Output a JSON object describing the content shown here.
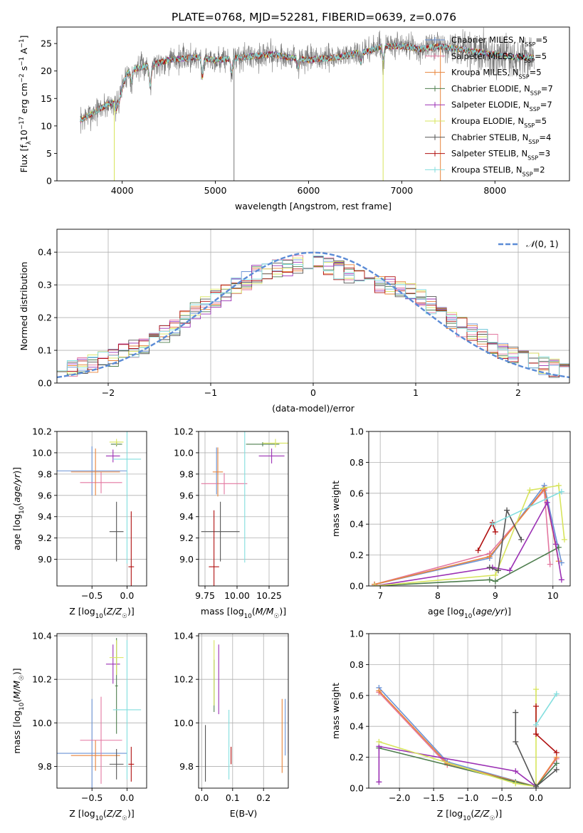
{
  "figure_title": "PLATE=0768, MJD=52281, FIBERID=0639, z=0.076",
  "series_colors": [
    "#6b93d6",
    "#e377a0",
    "#e8843b",
    "#4e7e4e",
    "#9b30b4",
    "#d7e45c",
    "#555555",
    "#b01010",
    "#82dede"
  ],
  "legend_labels": [
    [
      "Chabrier MILES, N",
      "SSP",
      "=5"
    ],
    [
      "Salpeter MILES, N",
      "SSP",
      "=5"
    ],
    [
      "Kroupa MILES, N",
      "SSP",
      "=5"
    ],
    [
      "Chabrier ELODIE, N",
      "SSP",
      "=7"
    ],
    [
      "Salpeter ELODIE, N",
      "SSP",
      "=7"
    ],
    [
      "Kroupa ELODIE, N",
      "SSP",
      "=5"
    ],
    [
      "Chabrier STELIB, N",
      "SSP",
      "=4"
    ],
    [
      "Salpeter STELIB, N",
      "SSP",
      "=3"
    ],
    [
      "Kroupa STELIB, N",
      "SSP",
      "=2"
    ]
  ],
  "chart_data": [
    {
      "id": "spectrum",
      "type": "line",
      "xlabel": "wavelength [Angstrom, rest frame]",
      "ylabel": "Flux [f_λ 10^-17 erg cm^-2 s^-1 A^-1]",
      "xlim": [
        3300,
        8800
      ],
      "ylim": [
        0,
        28
      ],
      "xticks": [
        4000,
        5000,
        6000,
        7000,
        8000
      ],
      "yticks": [
        0,
        5,
        10,
        15,
        20,
        25
      ],
      "grid": false,
      "legend": "top-right",
      "continuum": {
        "x": [
          3550,
          3700,
          3850,
          3950,
          4050,
          4150,
          4300,
          4500,
          4800,
          5000,
          5300,
          5600,
          6000,
          6300,
          6600,
          6800,
          7000,
          7200,
          7400,
          7600,
          7800,
          8000,
          8200,
          8400
        ],
        "y": [
          11,
          12.5,
          14,
          14.5,
          19.5,
          20.5,
          21,
          22,
          22.5,
          22,
          22.5,
          23,
          22,
          22.5,
          23.5,
          24.5,
          24.5,
          24,
          24.5,
          24,
          23.5,
          23,
          22.5,
          22.5
        ]
      },
      "absorption_dips": [
        {
          "x": 3933,
          "y": 13
        },
        {
          "x": 3969,
          "y": 14.5
        },
        {
          "x": 4102,
          "y": 18
        },
        {
          "x": 4300,
          "y": 17.5
        },
        {
          "x": 4861,
          "y": 19
        },
        {
          "x": 5175,
          "y": 19.5
        },
        {
          "x": 5890,
          "y": 20.5
        },
        {
          "x": 6563,
          "y": 21.5
        },
        {
          "x": 6800,
          "y": 22
        }
      ]
    },
    {
      "id": "residuals",
      "type": "line",
      "xlabel": "(data-model)/error",
      "ylabel": "Normed distribution",
      "xlim": [
        -2.5,
        2.5
      ],
      "ylim": [
        0,
        0.47
      ],
      "xticks": [
        -2,
        -1,
        0,
        1,
        2
      ],
      "yticks": [
        0.0,
        0.1,
        0.2,
        0.3,
        0.4
      ],
      "grid": true,
      "legend": "top-right",
      "gaussian_label": "N(0,1)",
      "bin_width": 0.1,
      "hist_base": {
        "x": [
          -2.5,
          -2.0,
          -1.5,
          -1.0,
          -0.5,
          0.0,
          0.5,
          1.0,
          1.5,
          2.0,
          2.5
        ],
        "y": [
          0.04,
          0.07,
          0.14,
          0.25,
          0.34,
          0.37,
          0.32,
          0.27,
          0.16,
          0.08,
          0.03
        ]
      }
    },
    {
      "id": "age-vs-Z",
      "type": "scatter",
      "xlabel": "Z [log10(Z/Z☉)]",
      "ylabel": "age [log10(age/yr)]",
      "xlim": [
        -1.0,
        0.28
      ],
      "ylim": [
        8.75,
        10.2
      ],
      "xticks": [
        -0.5,
        0.0
      ],
      "yticks": [
        9.0,
        9.2,
        9.4,
        9.6,
        9.8,
        10.0,
        10.2
      ],
      "grid": true,
      "points": [
        {
          "x": -0.5,
          "y": 9.83,
          "xerr": 0.5,
          "yerr": 0.23
        },
        {
          "x": -0.37,
          "y": 9.72,
          "xerr": 0.3,
          "yerr": 0.1
        },
        {
          "x": -0.45,
          "y": 9.82,
          "xerr": 0.35,
          "yerr": 0.22
        },
        {
          "x": -0.15,
          "y": 10.08,
          "xerr": 0.08,
          "yerr": 0.02
        },
        {
          "x": -0.2,
          "y": 9.97,
          "xerr": 0.1,
          "yerr": 0.06
        },
        {
          "x": -0.15,
          "y": 10.1,
          "xerr": 0.1,
          "yerr": 0.03
        },
        {
          "x": -0.15,
          "y": 9.26,
          "xerr": 0.1,
          "yerr": 0.28
        },
        {
          "x": 0.06,
          "y": 8.93,
          "xerr": 0.04,
          "yerr": 0.52
        },
        {
          "x": 0.0,
          "y": 9.94,
          "xerr": 0.2,
          "yerr": 0.98
        }
      ]
    },
    {
      "id": "age-vs-mass",
      "type": "scatter",
      "xlabel": "mass [log10(M/M☉)]",
      "ylabel": "",
      "xlim": [
        9.7,
        10.4
      ],
      "ylim": [
        8.75,
        10.2
      ],
      "xticks": [
        9.75,
        10.0,
        10.25
      ],
      "yticks": [
        9.0,
        9.2,
        9.4,
        9.6,
        9.8,
        10.0,
        10.2
      ],
      "grid": true,
      "points": [
        {
          "x": 9.84,
          "y": 9.83,
          "xerr": 0.0,
          "yerr": 0.22
        },
        {
          "x": 9.9,
          "y": 9.71,
          "xerr": 0.18,
          "yerr": 0.1
        },
        {
          "x": 9.85,
          "y": 9.82,
          "xerr": 0.04,
          "yerr": 0.23
        },
        {
          "x": 10.2,
          "y": 10.08,
          "xerr": 0.13,
          "yerr": 0.02
        },
        {
          "x": 10.27,
          "y": 9.97,
          "xerr": 0.1,
          "yerr": 0.07
        },
        {
          "x": 10.3,
          "y": 10.09,
          "xerr": 0.1,
          "yerr": 0.04
        },
        {
          "x": 9.87,
          "y": 9.26,
          "xerr": 0.15,
          "yerr": 0.28
        },
        {
          "x": 9.82,
          "y": 8.93,
          "xerr": 0.04,
          "yerr": 0.53
        },
        {
          "x": 10.06,
          "y": 9.94,
          "xerr": 0.0,
          "yerr": 0.97
        }
      ]
    },
    {
      "id": "massweight-vs-age",
      "type": "line",
      "xlabel": "age [log10(age/yr)]",
      "ylabel": "mass weight",
      "xlim": [
        6.8,
        10.3
      ],
      "ylim": [
        0,
        1.0
      ],
      "xticks": [
        7,
        8,
        9,
        10
      ],
      "yticks": [
        0.0,
        0.2,
        0.4,
        0.6,
        0.8,
        1.0
      ],
      "grid": true,
      "lines": [
        {
          "x": [
            6.9,
            8.9,
            9.85,
            10.15
          ],
          "y": [
            0.01,
            0.18,
            0.65,
            0.15
          ]
        },
        {
          "x": [
            6.9,
            8.9,
            9.85,
            9.95
          ],
          "y": [
            0.01,
            0.21,
            0.62,
            0.14
          ]
        },
        {
          "x": [
            6.9,
            8.9,
            9.85,
            10.1
          ],
          "y": [
            0.01,
            0.19,
            0.63,
            0.16
          ]
        },
        {
          "x": [
            6.9,
            8.9,
            9.0,
            10.1
          ],
          "y": [
            0.0,
            0.04,
            0.03,
            0.25
          ]
        },
        {
          "x": [
            6.9,
            8.95,
            9.25,
            9.9,
            10.05,
            10.15
          ],
          "y": [
            0.0,
            0.12,
            0.1,
            0.54,
            0.27,
            0.04
          ]
        },
        {
          "x": [
            6.9,
            9.0,
            9.6,
            10.1,
            10.2
          ],
          "y": [
            0.0,
            0.07,
            0.62,
            0.65,
            0.3
          ]
        },
        {
          "x": [
            8.9,
            9.05,
            9.2,
            9.45
          ],
          "y": [
            0.12,
            0.1,
            0.49,
            0.3
          ]
        },
        {
          "x": [
            8.7,
            8.95,
            9.0
          ],
          "y": [
            0.23,
            0.41,
            0.35
          ]
        },
        {
          "x": [
            8.95,
            10.15
          ],
          "y": [
            0.4,
            0.61
          ]
        }
      ]
    },
    {
      "id": "mass-vs-Z",
      "type": "scatter",
      "xlabel": "Z [log10(Z/Z☉)]",
      "ylabel": "mass [log10(M/M☉)]",
      "xlim": [
        -1.0,
        0.28
      ],
      "ylim": [
        9.7,
        10.41
      ],
      "xticks": [
        -0.5,
        0.0
      ],
      "yticks": [
        9.8,
        10.0,
        10.2,
        10.4
      ],
      "grid": true,
      "points": [
        {
          "x": -0.5,
          "y": 9.86,
          "xerr": 0.5,
          "yerr": 0.25
        },
        {
          "x": -0.37,
          "y": 9.92,
          "xerr": 0.3,
          "yerr": 0.2
        },
        {
          "x": -0.45,
          "y": 9.85,
          "xerr": 0.35,
          "yerr": 0.07
        },
        {
          "x": -0.15,
          "y": 10.17,
          "xerr": 0.02,
          "yerr": 0.22
        },
        {
          "x": -0.2,
          "y": 10.27,
          "xerr": 0.1,
          "yerr": 0.09
        },
        {
          "x": -0.15,
          "y": 10.3,
          "xerr": 0.1,
          "yerr": 0.08
        },
        {
          "x": -0.15,
          "y": 9.81,
          "xerr": 0.1,
          "yerr": 0.07
        },
        {
          "x": 0.06,
          "y": 9.81,
          "xerr": 0.04,
          "yerr": 0.08
        },
        {
          "x": 0.0,
          "y": 10.06,
          "xerr": 0.2,
          "yerr": 0.32
        }
      ]
    },
    {
      "id": "mass-vs-EBV",
      "type": "scatter",
      "xlabel": "E(B-V)",
      "ylabel": "",
      "xlim": [
        -0.01,
        0.28
      ],
      "ylim": [
        9.7,
        10.41
      ],
      "xticks": [
        0.0,
        0.1,
        0.2
      ],
      "yticks": [
        9.8,
        10.0,
        10.2,
        10.4
      ],
      "grid": true,
      "points": [
        {
          "x": 0.27,
          "y": 9.98,
          "xerr": 0.0,
          "yerr": 0.13
        },
        {
          "x": 0.28,
          "y": 9.98,
          "xerr": 0.0,
          "yerr": 0.12
        },
        {
          "x": 0.26,
          "y": 9.94,
          "xerr": 0.0,
          "yerr": 0.17
        },
        {
          "x": 0.04,
          "y": 10.17,
          "xerr": 0.0,
          "yerr": 0.12
        },
        {
          "x": 0.055,
          "y": 10.2,
          "xerr": 0.0,
          "yerr": 0.16
        },
        {
          "x": 0.04,
          "y": 10.23,
          "xerr": 0.0,
          "yerr": 0.15
        },
        {
          "x": 0.012,
          "y": 9.86,
          "xerr": 0.0,
          "yerr": 0.13
        },
        {
          "x": 0.095,
          "y": 9.85,
          "xerr": 0.0,
          "yerr": 0.04
        },
        {
          "x": 0.088,
          "y": 9.9,
          "xerr": 0.0,
          "yerr": 0.16
        }
      ]
    },
    {
      "id": "massweight-vs-Z",
      "type": "line",
      "xlabel": "Z [log10(Z/Z☉)]",
      "ylabel": "mass weight",
      "xlim": [
        -2.45,
        0.5
      ],
      "ylim": [
        0,
        1.0
      ],
      "xticks": [
        -2.0,
        -1.5,
        -1.0,
        -0.5,
        0.0
      ],
      "yticks": [
        0.0,
        0.2,
        0.4,
        0.6,
        0.8,
        1.0
      ],
      "grid": true,
      "lines": [
        {
          "x": [
            -2.3,
            -1.3,
            0.0,
            0.3
          ],
          "y": [
            0.65,
            0.17,
            0.01,
            0.16
          ]
        },
        {
          "x": [
            -2.3,
            -1.3,
            0.0,
            0.3
          ],
          "y": [
            0.62,
            0.15,
            0.01,
            0.19
          ]
        },
        {
          "x": [
            -2.3,
            -1.3,
            0.0,
            0.3
          ],
          "y": [
            0.63,
            0.16,
            0.01,
            0.2
          ]
        },
        {
          "x": [
            -2.3,
            -0.3,
            0.0,
            0.3
          ],
          "y": [
            0.26,
            0.04,
            0.01,
            0.16
          ]
        },
        {
          "x": [
            -2.3,
            -2.3,
            -0.3,
            0.0
          ],
          "y": [
            0.04,
            0.27,
            0.11,
            0.01
          ]
        },
        {
          "x": [
            -2.3,
            -0.3,
            0.0,
            0.0
          ],
          "y": [
            0.3,
            0.03,
            0.01,
            0.64
          ]
        },
        {
          "x": [
            -0.3,
            -0.3,
            0.0,
            0.3
          ],
          "y": [
            0.49,
            0.3,
            0.01,
            0.12
          ]
        },
        {
          "x": [
            0.0,
            0.0,
            0.3
          ],
          "y": [
            0.53,
            0.35,
            0.23
          ]
        },
        {
          "x": [
            0.0,
            0.3
          ],
          "y": [
            0.41,
            0.61
          ]
        }
      ]
    }
  ]
}
